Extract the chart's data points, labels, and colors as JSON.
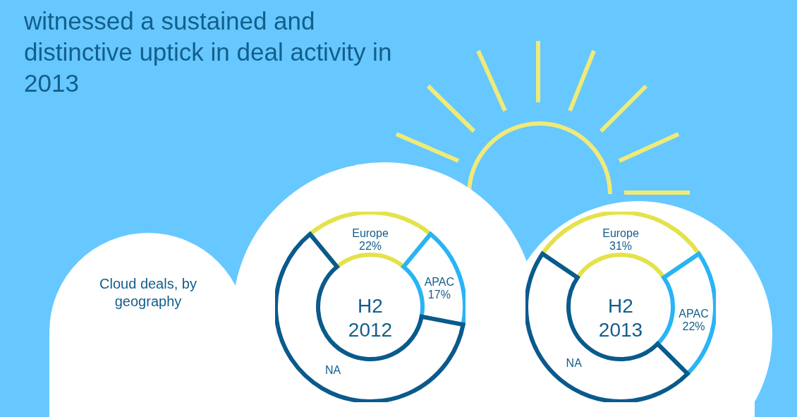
{
  "chart_data": [
    {
      "type": "other",
      "title": "witnessed a sustained and distinctive uptick in deal activity in 2013",
      "annotations": [
        "Cloud deals, by geography"
      ]
    },
    {
      "type": "donut",
      "title": "H2 2012",
      "categories": [
        "Europe",
        "APAC",
        "NA"
      ],
      "values": [
        22,
        17,
        61
      ],
      "value_labels": [
        "22%",
        "17%",
        null
      ],
      "colors": [
        "#e4e24a",
        "#29b4f4",
        "#0a5a8c"
      ]
    },
    {
      "type": "donut",
      "title": "H2 2013",
      "categories": [
        "Europe",
        "APAC",
        "NA"
      ],
      "values": [
        31,
        22,
        47
      ],
      "value_labels": [
        "31%",
        "22%",
        null
      ],
      "colors": [
        "#e4e24a",
        "#29b4f4",
        "#0a5a8c"
      ]
    }
  ]
}
